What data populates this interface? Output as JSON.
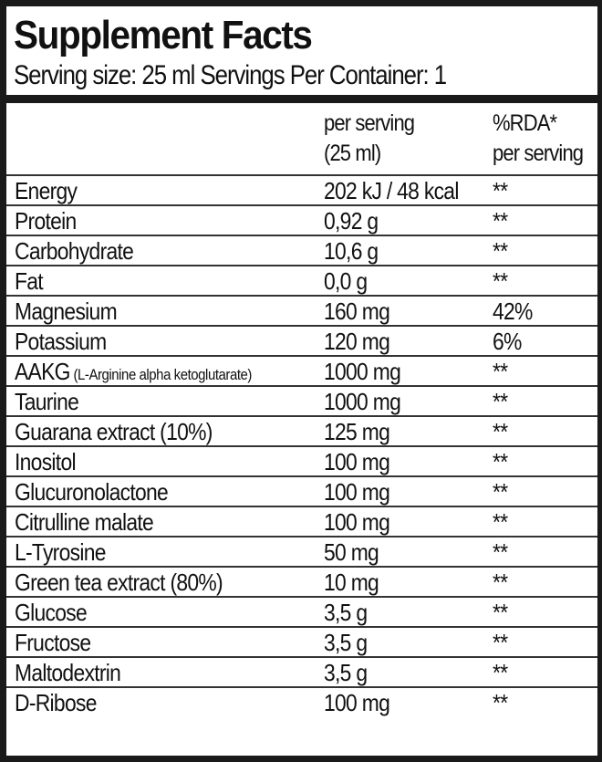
{
  "title": "Supplement Facts",
  "serving_line": "Serving size: 25 ml  Servings Per Container: 1",
  "header": {
    "col2_line1": "per serving",
    "col2_line2": "(25 ml)",
    "col3_line1": "%RDA*",
    "col3_line2": "per serving"
  },
  "rows": [
    {
      "name": "Energy",
      "note": "",
      "amount": "202 kJ / 48 kcal",
      "rda": "**"
    },
    {
      "name": "Protein",
      "note": "",
      "amount": "0,92 g",
      "rda": "**"
    },
    {
      "name": "Carbohydrate",
      "note": "",
      "amount": "10,6 g",
      "rda": "**"
    },
    {
      "name": "Fat",
      "note": "",
      "amount": "0,0 g",
      "rda": "**"
    },
    {
      "name": "Magnesium",
      "note": "",
      "amount": "160 mg",
      "rda": "42%"
    },
    {
      "name": "Potassium",
      "note": "",
      "amount": "120 mg",
      "rda": "6%"
    },
    {
      "name": "AAKG",
      "note": " (L-Arginine alpha ketoglutarate)",
      "amount": "1000 mg",
      "rda": "**"
    },
    {
      "name": "Taurine",
      "note": "",
      "amount": "1000 mg",
      "rda": "**"
    },
    {
      "name": "Guarana extract (10%)",
      "note": "",
      "amount": "125 mg",
      "rda": "**"
    },
    {
      "name": "Inositol",
      "note": "",
      "amount": "100 mg",
      "rda": "**"
    },
    {
      "name": "Glucuronolactone",
      "note": "",
      "amount": "100 mg",
      "rda": "**"
    },
    {
      "name": "Citrulline malate",
      "note": "",
      "amount": "100 mg",
      "rda": "**"
    },
    {
      "name": "L-Tyrosine",
      "note": "",
      "amount": "50 mg",
      "rda": "**"
    },
    {
      "name": "Green tea extract (80%)",
      "note": "",
      "amount": "10 mg",
      "rda": "**"
    },
    {
      "name": "Glucose",
      "note": "",
      "amount": "3,5 g",
      "rda": "**"
    },
    {
      "name": "Fructose",
      "note": "",
      "amount": "3,5 g",
      "rda": "**"
    },
    {
      "name": "Maltodextrin",
      "note": "",
      "amount": "3,5 g",
      "rda": "**"
    },
    {
      "name": "D-Ribose",
      "note": "",
      "amount": "100 mg",
      "rda": "**"
    }
  ]
}
